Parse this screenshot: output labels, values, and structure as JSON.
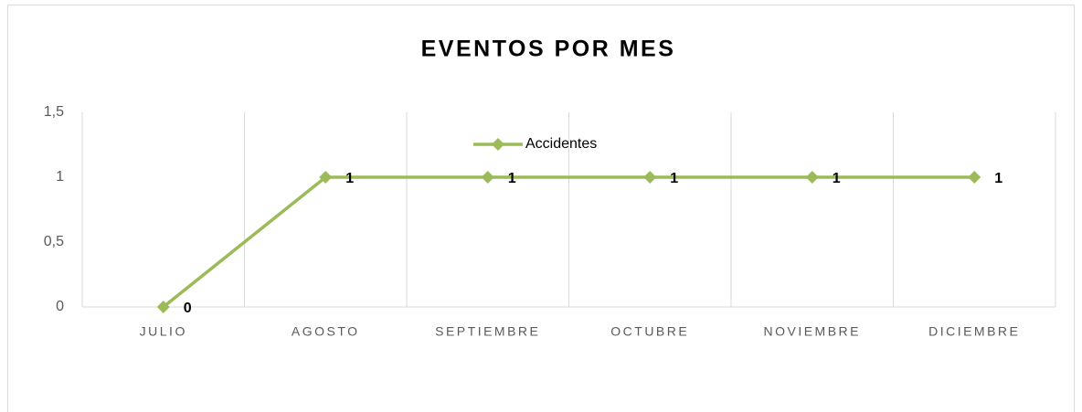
{
  "chart_data": {
    "type": "line",
    "title": "EVENTOS POR MES",
    "categories": [
      "JULIO",
      "AGOSTO",
      "SEPTIEMBRE",
      "OCTUBRE",
      "NOVIEMBRE",
      "DICIEMBRE"
    ],
    "series": [
      {
        "name": "Accidentes",
        "color": "#9bbb59",
        "values": [
          0,
          1,
          1,
          1,
          1,
          1
        ]
      }
    ],
    "ylim": [
      0,
      1.5
    ],
    "yticks": [
      0,
      {
        "value": 0.5,
        "label": "0,5"
      },
      1,
      {
        "value": 1.5,
        "label": "1,5"
      }
    ],
    "grid": true,
    "legend": "top",
    "data_labels": true
  }
}
